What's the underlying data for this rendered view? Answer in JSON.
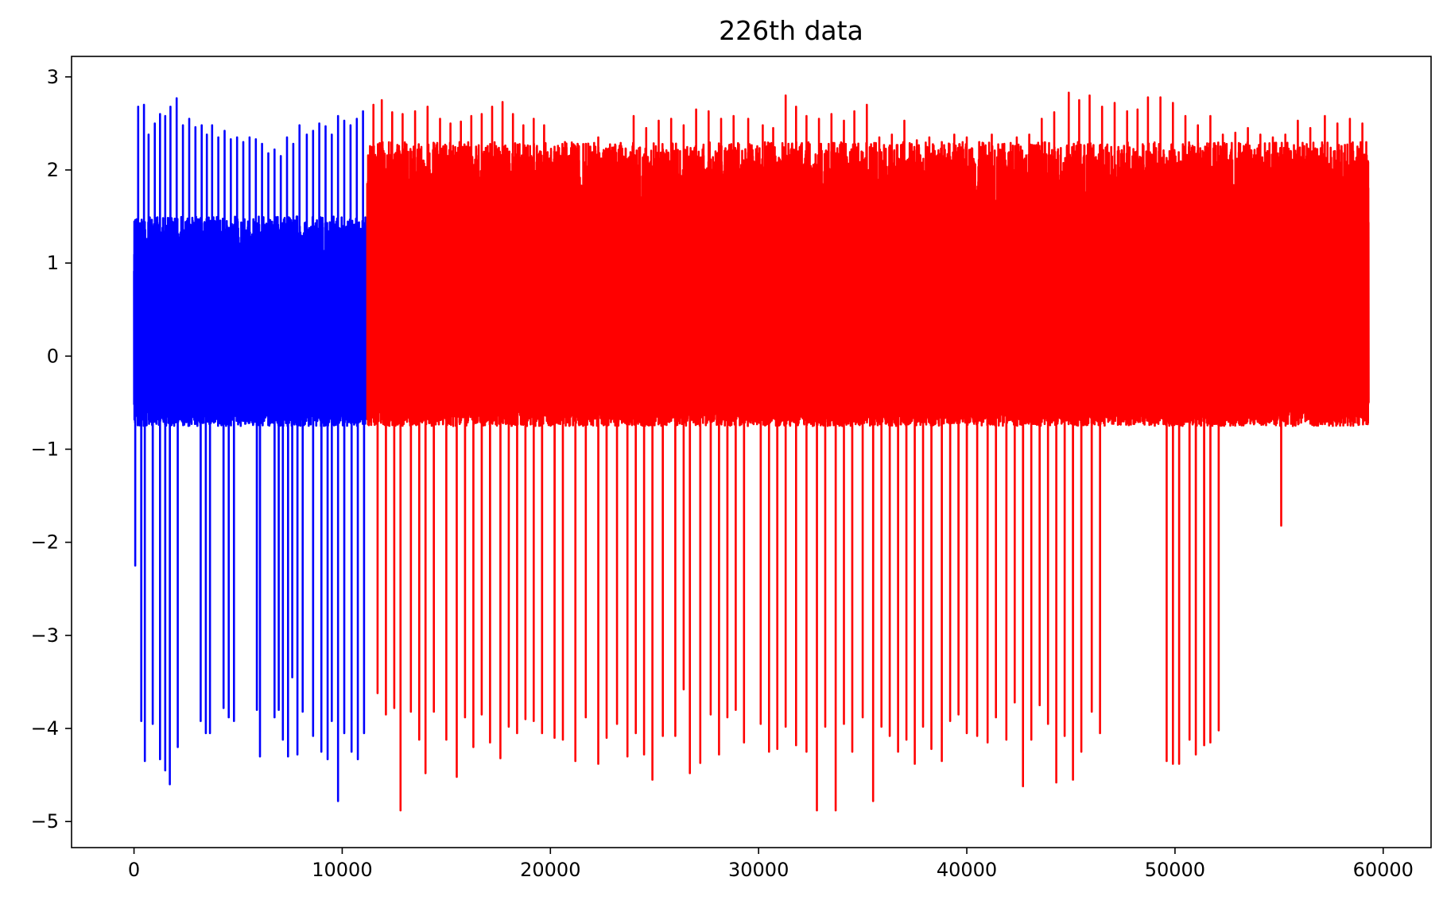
{
  "chart_data": {
    "type": "line",
    "title": "226th data",
    "xlabel": "",
    "ylabel": "",
    "xlim": [
      -3000,
      62300
    ],
    "ylim": [
      -5.28,
      3.22
    ],
    "x_ticks": [
      0,
      10000,
      20000,
      30000,
      40000,
      50000,
      60000
    ],
    "x_tick_labels": [
      "0",
      "10000",
      "20000",
      "30000",
      "40000",
      "50000",
      "60000"
    ],
    "y_ticks": [
      -5,
      -4,
      -3,
      -2,
      -1,
      0,
      1,
      2,
      3
    ],
    "y_tick_labels": [
      "−5",
      "−4",
      "−3",
      "−2",
      "−1",
      "0",
      "1",
      "2",
      "3"
    ],
    "grid": false,
    "legend": "none",
    "series": [
      {
        "color": "#0000ff",
        "x_start": 0,
        "x_end": 11200,
        "band": [
          -0.75,
          1.5
        ],
        "peaks": [
          [
            200,
            2.68
          ],
          [
            480,
            2.7
          ],
          [
            700,
            2.38
          ],
          [
            1000,
            2.5
          ],
          [
            1250,
            2.6
          ],
          [
            1500,
            2.58
          ],
          [
            1750,
            2.68
          ],
          [
            2050,
            2.77
          ],
          [
            2350,
            2.48
          ],
          [
            2650,
            2.55
          ],
          [
            2950,
            2.46
          ],
          [
            3250,
            2.48
          ],
          [
            3500,
            2.38
          ],
          [
            3750,
            2.48
          ],
          [
            4050,
            2.35
          ],
          [
            4350,
            2.42
          ],
          [
            4650,
            2.33
          ],
          [
            4950,
            2.35
          ],
          [
            5250,
            2.3
          ],
          [
            5550,
            2.35
          ],
          [
            5850,
            2.33
          ],
          [
            6150,
            2.28
          ],
          [
            6450,
            2.18
          ],
          [
            6750,
            2.22
          ],
          [
            7050,
            2.15
          ],
          [
            7350,
            2.35
          ],
          [
            7650,
            2.28
          ],
          [
            7950,
            2.48
          ],
          [
            8300,
            2.38
          ],
          [
            8600,
            2.42
          ],
          [
            8900,
            2.5
          ],
          [
            9200,
            2.47
          ],
          [
            9500,
            2.38
          ],
          [
            9800,
            2.58
          ],
          [
            10100,
            2.53
          ],
          [
            10400,
            2.48
          ],
          [
            10700,
            2.55
          ],
          [
            11000,
            2.63
          ]
        ],
        "troughs": [
          [
            60,
            -2.25
          ],
          [
            350,
            -3.92
          ],
          [
            520,
            -4.35
          ],
          [
            900,
            -3.95
          ],
          [
            1250,
            -4.33
          ],
          [
            1500,
            -4.45
          ],
          [
            1720,
            -4.6
          ],
          [
            2100,
            -4.2
          ],
          [
            3200,
            -3.92
          ],
          [
            3450,
            -4.05
          ],
          [
            3650,
            -4.05
          ],
          [
            4300,
            -3.78
          ],
          [
            4550,
            -3.88
          ],
          [
            4800,
            -3.92
          ],
          [
            5900,
            -3.8
          ],
          [
            6050,
            -4.3
          ],
          [
            6750,
            -3.88
          ],
          [
            6950,
            -3.8
          ],
          [
            7150,
            -4.12
          ],
          [
            7400,
            -4.3
          ],
          [
            7600,
            -3.45
          ],
          [
            7850,
            -4.28
          ],
          [
            8100,
            -3.82
          ],
          [
            8600,
            -4.08
          ],
          [
            9000,
            -4.25
          ],
          [
            9300,
            -4.33
          ],
          [
            9500,
            -3.92
          ],
          [
            9800,
            -4.78
          ],
          [
            10100,
            -4.05
          ],
          [
            10450,
            -4.25
          ],
          [
            10750,
            -4.33
          ],
          [
            11050,
            -4.05
          ]
        ]
      },
      {
        "color": "#ff0000",
        "x_start": 11200,
        "x_end": 59300,
        "band": [
          -0.75,
          2.3
        ],
        "peaks": [
          [
            11500,
            2.7
          ],
          [
            11900,
            2.75
          ],
          [
            12400,
            2.62
          ],
          [
            12900,
            2.6
          ],
          [
            13500,
            2.63
          ],
          [
            14100,
            2.68
          ],
          [
            14700,
            2.55
          ],
          [
            15200,
            2.5
          ],
          [
            15700,
            2.52
          ],
          [
            16200,
            2.58
          ],
          [
            16700,
            2.6
          ],
          [
            17200,
            2.68
          ],
          [
            17700,
            2.73
          ],
          [
            18200,
            2.6
          ],
          [
            18700,
            2.48
          ],
          [
            19200,
            2.55
          ],
          [
            19700,
            2.48
          ],
          [
            20200,
            2.25
          ],
          [
            20700,
            2.3
          ],
          [
            21200,
            2.25
          ],
          [
            21700,
            2.28
          ],
          [
            22300,
            2.35
          ],
          [
            22800,
            2.23
          ],
          [
            23400,
            2.2
          ],
          [
            24000,
            2.58
          ],
          [
            24600,
            2.45
          ],
          [
            25200,
            2.53
          ],
          [
            25800,
            2.55
          ],
          [
            26400,
            2.48
          ],
          [
            27000,
            2.65
          ],
          [
            27600,
            2.63
          ],
          [
            28200,
            2.55
          ],
          [
            28800,
            2.58
          ],
          [
            29500,
            2.55
          ],
          [
            30200,
            2.48
          ],
          [
            30700,
            2.45
          ],
          [
            31300,
            2.8
          ],
          [
            31800,
            2.68
          ],
          [
            32300,
            2.58
          ],
          [
            32900,
            2.55
          ],
          [
            33500,
            2.6
          ],
          [
            34100,
            2.53
          ],
          [
            34600,
            2.63
          ],
          [
            35200,
            2.7
          ],
          [
            35800,
            2.35
          ],
          [
            36400,
            2.38
          ],
          [
            37000,
            2.53
          ],
          [
            37600,
            2.32
          ],
          [
            38200,
            2.35
          ],
          [
            38800,
            2.3
          ],
          [
            39400,
            2.38
          ],
          [
            40000,
            2.35
          ],
          [
            40600,
            2.3
          ],
          [
            41200,
            2.38
          ],
          [
            41800,
            2.28
          ],
          [
            42400,
            2.35
          ],
          [
            43000,
            2.38
          ],
          [
            43600,
            2.55
          ],
          [
            44200,
            2.62
          ],
          [
            44900,
            2.83
          ],
          [
            45400,
            2.75
          ],
          [
            45900,
            2.8
          ],
          [
            46500,
            2.68
          ],
          [
            47100,
            2.72
          ],
          [
            47700,
            2.63
          ],
          [
            48200,
            2.65
          ],
          [
            48700,
            2.78
          ],
          [
            49300,
            2.78
          ],
          [
            49900,
            2.72
          ],
          [
            50500,
            2.58
          ],
          [
            51100,
            2.48
          ],
          [
            51700,
            2.58
          ],
          [
            52300,
            2.38
          ],
          [
            52900,
            2.4
          ],
          [
            53500,
            2.45
          ],
          [
            54100,
            2.38
          ],
          [
            54700,
            2.35
          ],
          [
            55300,
            2.38
          ],
          [
            55900,
            2.53
          ],
          [
            56500,
            2.45
          ],
          [
            57200,
            2.58
          ],
          [
            57800,
            2.5
          ],
          [
            58400,
            2.55
          ],
          [
            59000,
            2.5
          ]
        ],
        "troughs": [
          [
            11700,
            -3.62
          ],
          [
            12100,
            -3.85
          ],
          [
            12500,
            -3.78
          ],
          [
            12800,
            -4.88
          ],
          [
            13300,
            -3.82
          ],
          [
            13700,
            -4.12
          ],
          [
            14000,
            -4.48
          ],
          [
            14400,
            -3.82
          ],
          [
            15000,
            -4.12
          ],
          [
            15500,
            -4.52
          ],
          [
            15900,
            -3.88
          ],
          [
            16300,
            -4.2
          ],
          [
            16700,
            -3.85
          ],
          [
            17100,
            -4.15
          ],
          [
            17600,
            -4.32
          ],
          [
            18000,
            -3.98
          ],
          [
            18400,
            -4.05
          ],
          [
            18800,
            -3.9
          ],
          [
            19200,
            -3.92
          ],
          [
            19600,
            -4.05
          ],
          [
            20200,
            -4.1
          ],
          [
            20600,
            -4.12
          ],
          [
            21200,
            -4.35
          ],
          [
            21700,
            -3.88
          ],
          [
            22300,
            -4.38
          ],
          [
            22700,
            -4.1
          ],
          [
            23200,
            -3.95
          ],
          [
            23700,
            -4.3
          ],
          [
            24100,
            -4.05
          ],
          [
            24500,
            -4.28
          ],
          [
            24900,
            -4.55
          ],
          [
            25400,
            -4.08
          ],
          [
            26000,
            -4.08
          ],
          [
            26400,
            -3.58
          ],
          [
            26700,
            -4.48
          ],
          [
            27200,
            -4.37
          ],
          [
            27700,
            -3.85
          ],
          [
            28100,
            -4.28
          ],
          [
            28500,
            -3.88
          ],
          [
            28900,
            -3.8
          ],
          [
            29300,
            -4.15
          ],
          [
            30100,
            -3.95
          ],
          [
            30500,
            -4.25
          ],
          [
            30900,
            -4.22
          ],
          [
            31300,
            -3.98
          ],
          [
            31800,
            -4.18
          ],
          [
            32300,
            -4.25
          ],
          [
            32800,
            -4.88
          ],
          [
            33200,
            -3.98
          ],
          [
            33700,
            -4.88
          ],
          [
            34100,
            -3.95
          ],
          [
            34500,
            -4.25
          ],
          [
            35000,
            -3.88
          ],
          [
            35500,
            -4.78
          ],
          [
            35900,
            -3.98
          ],
          [
            36300,
            -4.08
          ],
          [
            36700,
            -4.25
          ],
          [
            37100,
            -4.12
          ],
          [
            37500,
            -4.38
          ],
          [
            37900,
            -3.98
          ],
          [
            38300,
            -4.22
          ],
          [
            38800,
            -4.35
          ],
          [
            39200,
            -3.92
          ],
          [
            39600,
            -3.85
          ],
          [
            40000,
            -4.05
          ],
          [
            40500,
            -4.08
          ],
          [
            41000,
            -4.15
          ],
          [
            41400,
            -3.88
          ],
          [
            41900,
            -4.12
          ],
          [
            42300,
            -3.72
          ],
          [
            42700,
            -4.62
          ],
          [
            43100,
            -4.12
          ],
          [
            43500,
            -3.75
          ],
          [
            43900,
            -3.95
          ],
          [
            44300,
            -4.58
          ],
          [
            44700,
            -4.08
          ],
          [
            45100,
            -4.55
          ],
          [
            45500,
            -4.25
          ],
          [
            46000,
            -3.82
          ],
          [
            46400,
            -4.05
          ],
          [
            49600,
            -4.35
          ],
          [
            49900,
            -4.38
          ],
          [
            50200,
            -4.38
          ],
          [
            50700,
            -4.12
          ],
          [
            51000,
            -4.28
          ],
          [
            51400,
            -4.18
          ],
          [
            51700,
            -4.15
          ],
          [
            52100,
            -4.02
          ],
          [
            55100,
            -1.82
          ]
        ]
      }
    ]
  }
}
